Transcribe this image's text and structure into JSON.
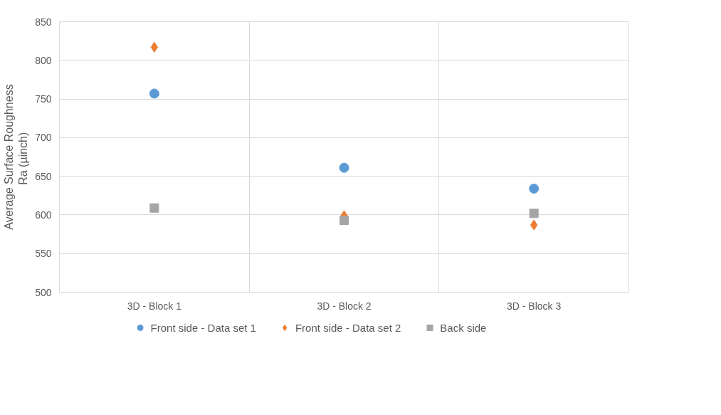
{
  "chart_data": {
    "type": "scatter",
    "ylabel": "Average Surface Roughness\nRa  (µinch)",
    "categories": [
      "3D - Block 1",
      "3D - Block 2",
      "3D - Block 3"
    ],
    "series": [
      {
        "name": "Front side - Data set 1",
        "color": "#5b9bd5",
        "marker": "circle",
        "values": [
          757,
          661,
          634
        ]
      },
      {
        "name": "Front side - Data set 2",
        "color": "#ed7d31",
        "marker": "diamond",
        "values": [
          817,
          599,
          587
        ]
      },
      {
        "name": "Back side",
        "color": "#a5a5a5",
        "marker": "square",
        "values": [
          609,
          593,
          602
        ]
      }
    ],
    "ylim": [
      500,
      850
    ],
    "yticks": [
      500,
      550,
      600,
      650,
      700,
      750,
      800,
      850
    ],
    "grid": true,
    "legend": "bottom"
  }
}
